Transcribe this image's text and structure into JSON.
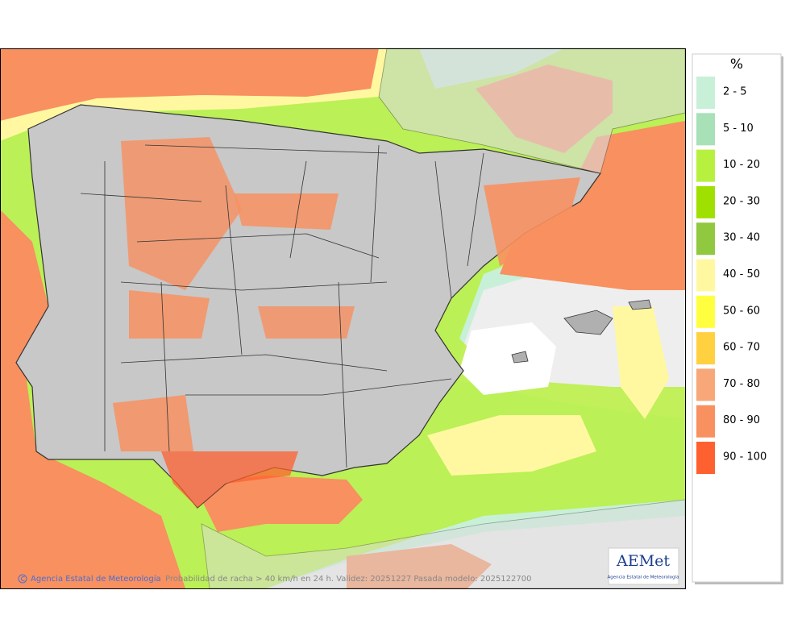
{
  "map": {
    "legend": {
      "title": "%",
      "items": [
        {
          "label": "2 - 5",
          "color": "#c8f0d8"
        },
        {
          "label": "5 - 10",
          "color": "#a8e0b8"
        },
        {
          "label": "10 - 20",
          "color": "#b8f040"
        },
        {
          "label": "20 - 30",
          "color": "#a0e000"
        },
        {
          "label": "30 - 40",
          "color": "#90c840"
        },
        {
          "label": "40 - 50",
          "color": "#fff8a0"
        },
        {
          "label": "50 - 60",
          "color": "#ffff40"
        },
        {
          "label": "60 - 70",
          "color": "#ffd040"
        },
        {
          "label": "70 - 80",
          "color": "#f8a878"
        },
        {
          "label": "80 - 90",
          "color": "#f89060"
        },
        {
          "label": "90 - 100",
          "color": "#ff6030"
        }
      ]
    },
    "footer": {
      "credit": "Agencia Estatal de Meteorología",
      "caption": "Probabilidad de racha > 40 km/h en 24 h. Validez: 20251227 Pasada modelo: 2025122700"
    },
    "logo": {
      "name": "AEMet",
      "subtitle": "Agencia Estatal de Meteorología"
    }
  }
}
